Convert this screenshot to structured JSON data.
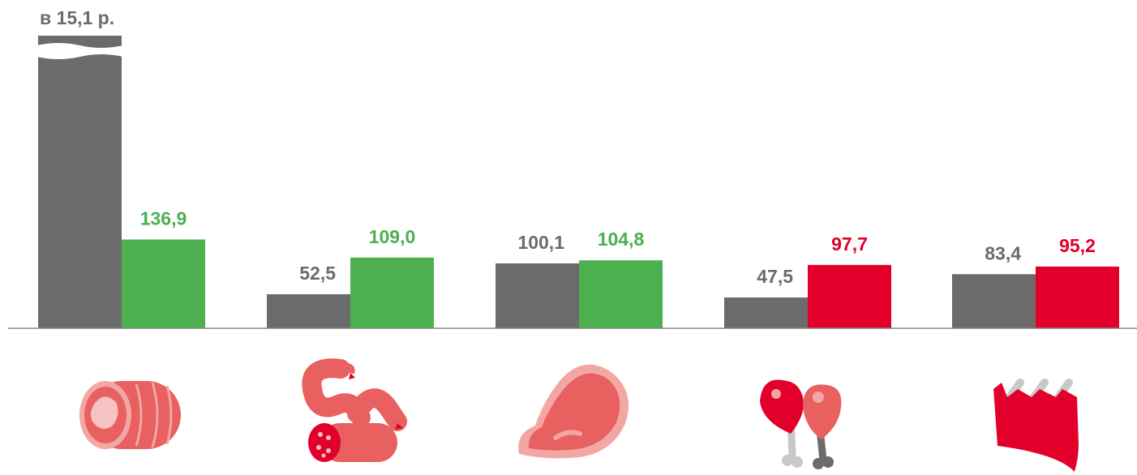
{
  "chart_data": {
    "type": "bar",
    "categories": [
      "ham",
      "sausages",
      "meat",
      "poultry",
      "ribs"
    ],
    "series": [
      {
        "color": "#6b6b6b",
        "values": [
          1510,
          52.5,
          100.1,
          47.5,
          83.4
        ],
        "labels": [
          "в 15,1 р.",
          "52,5",
          "100,1",
          "47,5",
          "83,4"
        ]
      },
      {
        "values": [
          136.9,
          109.0,
          104.8,
          97.7,
          95.2
        ],
        "labels": [
          "136,9",
          "109,0",
          "104,8",
          "97,7",
          "95,2"
        ],
        "colors": [
          "#4caf50",
          "#4caf50",
          "#4caf50",
          "#e2002b",
          "#e2002b"
        ]
      }
    ],
    "axis_broken_first_bar": true,
    "grid": false
  },
  "icons": [
    "ham-roll-icon",
    "sausages-icon",
    "steak-icon",
    "chicken-legs-icon",
    "ribs-icon"
  ]
}
